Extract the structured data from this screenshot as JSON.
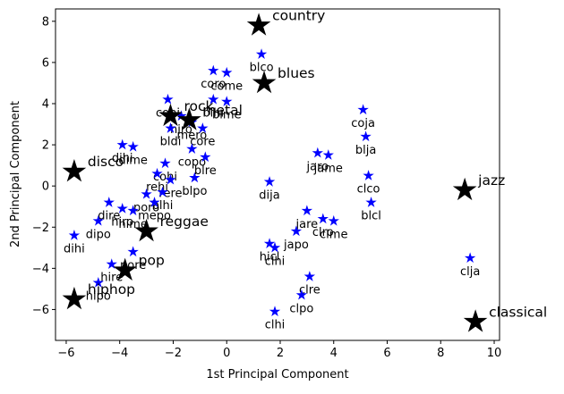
{
  "chart_data": {
    "type": "scatter",
    "xlabel": "1st Principal Component",
    "ylabel": "2nd Principal Component",
    "xlim": [
      -6.4,
      10.2
    ],
    "ylim": [
      -7.5,
      8.6
    ],
    "xticks": [
      -6,
      -4,
      -2,
      0,
      2,
      4,
      6,
      8,
      10
    ],
    "yticks": [
      -6,
      -4,
      -2,
      0,
      2,
      4,
      6,
      8
    ],
    "grid": false,
    "colors": {
      "song_marker": "#0000ff",
      "genre_marker": "#000000"
    },
    "series": [
      {
        "kind": "songs",
        "marker": "small-star",
        "points": [
          {
            "label": "blco",
            "x": 1.3,
            "y": 6.4
          },
          {
            "label": "coro",
            "x": -0.5,
            "y": 5.6
          },
          {
            "label": "come",
            "x": 0.0,
            "y": 5.5
          },
          {
            "label": "blhi",
            "x": -0.5,
            "y": 4.2
          },
          {
            "label": "blme",
            "x": 0.0,
            "y": 4.1
          },
          {
            "label": "cohi",
            "x": -2.2,
            "y": 4.2
          },
          {
            "label": "hiro",
            "x": -1.7,
            "y": 3.4
          },
          {
            "label": "mero",
            "x": -1.3,
            "y": 3.1
          },
          {
            "label": "bldi",
            "x": -2.1,
            "y": 2.8
          },
          {
            "label": "core",
            "x": -0.9,
            "y": 2.8
          },
          {
            "label": "copo",
            "x": -1.3,
            "y": 1.8
          },
          {
            "label": "blre",
            "x": -0.8,
            "y": 1.4
          },
          {
            "label": "dihi",
            "x": -3.9,
            "y": 2.0
          },
          {
            "label": "dime",
            "x": -3.5,
            "y": 1.9
          },
          {
            "label": "cohi",
            "x": -2.3,
            "y": 1.1
          },
          {
            "label": "rehi",
            "x": -2.6,
            "y": 0.6
          },
          {
            "label": "rere",
            "x": -2.1,
            "y": 0.3
          },
          {
            "label": "blpo",
            "x": -1.2,
            "y": 0.4
          },
          {
            "label": "poro",
            "x": -3.0,
            "y": -0.4
          },
          {
            "label": "blhi",
            "x": -2.4,
            "y": -0.3
          },
          {
            "label": "mepo",
            "x": -2.7,
            "y": -0.8
          },
          {
            "label": "dire",
            "x": -4.4,
            "y": -0.8
          },
          {
            "label": "hiro",
            "x": -3.9,
            "y": -1.1
          },
          {
            "label": "hime",
            "x": -3.5,
            "y": -1.2
          },
          {
            "label": "dipo",
            "x": -4.8,
            "y": -1.7
          },
          {
            "label": "dihi",
            "x": -5.7,
            "y": -2.4
          },
          {
            "label": "pore",
            "x": -3.5,
            "y": -3.2
          },
          {
            "label": "hire",
            "x": -4.3,
            "y": -3.8
          },
          {
            "label": "hipo",
            "x": -4.8,
            "y": -4.7
          },
          {
            "label": "jaro",
            "x": 3.4,
            "y": 1.6
          },
          {
            "label": "jame",
            "x": 3.8,
            "y": 1.5
          },
          {
            "label": "coja",
            "x": 5.1,
            "y": 3.7
          },
          {
            "label": "blja",
            "x": 5.2,
            "y": 2.4
          },
          {
            "label": "clco",
            "x": 5.3,
            "y": 0.5
          },
          {
            "label": "blcl",
            "x": 5.4,
            "y": -0.8
          },
          {
            "label": "dija",
            "x": 1.6,
            "y": 0.2
          },
          {
            "label": "jare",
            "x": 3.0,
            "y": -1.2
          },
          {
            "label": "clro",
            "x": 3.6,
            "y": -1.6
          },
          {
            "label": "clme",
            "x": 4.0,
            "y": -1.7
          },
          {
            "label": "japo",
            "x": 2.6,
            "y": -2.2
          },
          {
            "label": "hicl",
            "x": 1.6,
            "y": -2.8
          },
          {
            "label": "clhi",
            "x": 1.8,
            "y": -3.0
          },
          {
            "label": "clre",
            "x": 3.1,
            "y": -4.4
          },
          {
            "label": "clpo",
            "x": 2.8,
            "y": -5.3
          },
          {
            "label": "clhi",
            "x": 1.8,
            "y": -6.1
          },
          {
            "label": "clja",
            "x": 9.1,
            "y": -3.5
          }
        ]
      },
      {
        "kind": "genres",
        "marker": "large-star",
        "points": [
          {
            "label": "country",
            "x": 1.2,
            "y": 7.8
          },
          {
            "label": "blues",
            "x": 1.4,
            "y": 5.0
          },
          {
            "label": "rock",
            "x": -2.1,
            "y": 3.4
          },
          {
            "label": "metal",
            "x": -1.4,
            "y": 3.2
          },
          {
            "label": "disco",
            "x": -5.7,
            "y": 0.7
          },
          {
            "label": "reggae",
            "x": -3.0,
            "y": -2.2
          },
          {
            "label": "pop",
            "x": -3.8,
            "y": -4.1
          },
          {
            "label": "hiphop",
            "x": -5.7,
            "y": -5.5
          },
          {
            "label": "jazz",
            "x": 8.9,
            "y": -0.2
          },
          {
            "label": "classical",
            "x": 9.3,
            "y": -6.6
          }
        ]
      }
    ]
  }
}
